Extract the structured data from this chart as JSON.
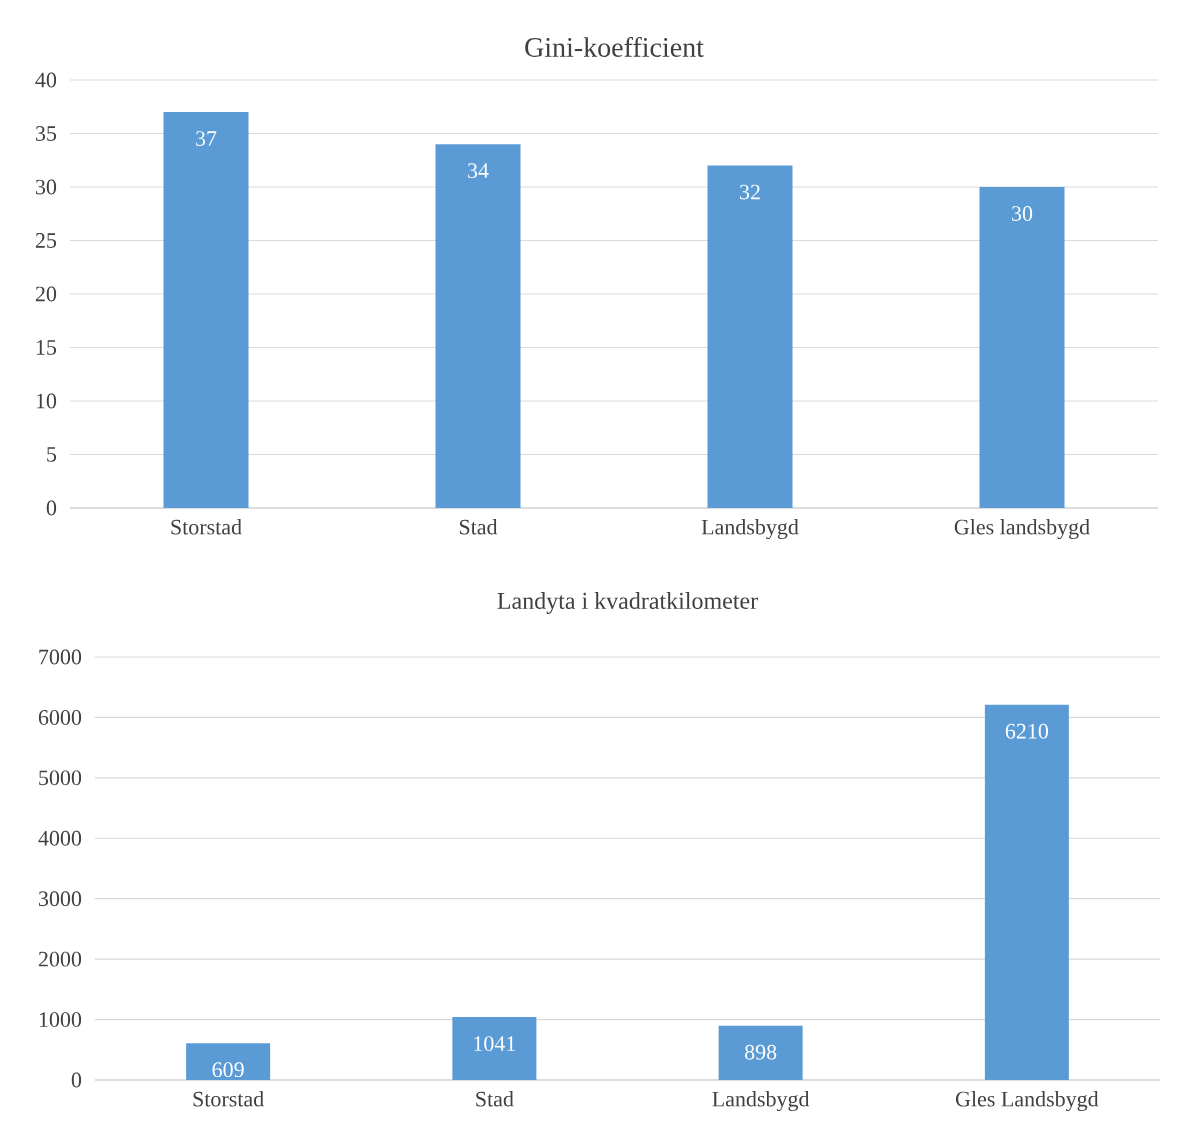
{
  "chart_data": [
    {
      "type": "bar",
      "title": "Gini-koefficient",
      "categories": [
        "Storstad",
        "Stad",
        "Landsbygd",
        "Gles landsbygd"
      ],
      "values": [
        37,
        34,
        32,
        30
      ],
      "color": "#5b9bd5",
      "ylim": [
        0,
        40
      ],
      "yticks": [
        0,
        5,
        10,
        15,
        20,
        25,
        30,
        35,
        40
      ],
      "grid": "y",
      "data_labels": true
    },
    {
      "type": "bar",
      "title": "Landyta i kvadratkilometer",
      "categories": [
        "Storstad",
        "Stad",
        "Landsbygd",
        "Gles Landsbygd"
      ],
      "values": [
        609,
        1041,
        898,
        6210
      ],
      "color": "#5b9bd5",
      "ylim": [
        0,
        7000
      ],
      "yticks": [
        0,
        1000,
        2000,
        3000,
        4000,
        5000,
        6000,
        7000
      ],
      "grid": "y",
      "data_labels": true
    }
  ]
}
